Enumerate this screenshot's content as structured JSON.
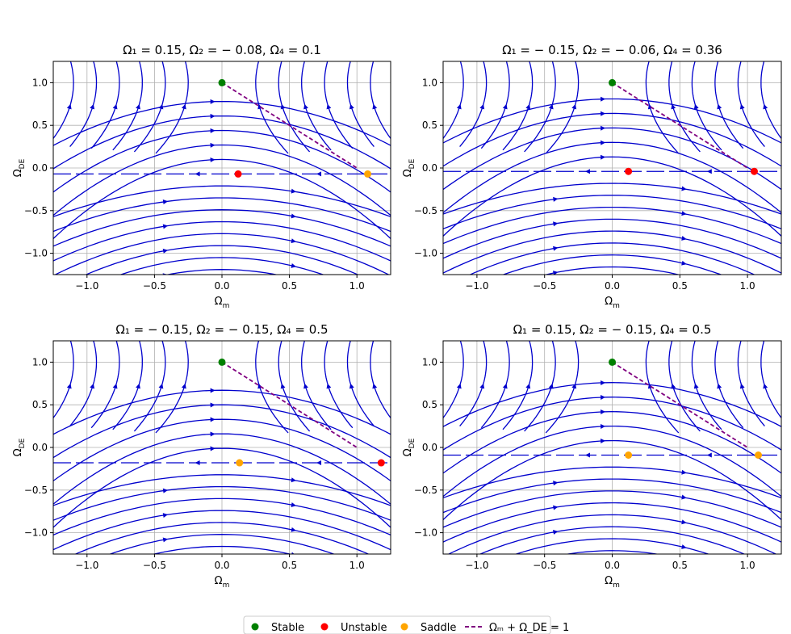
{
  "chart_data": [
    {
      "type": "streamplot",
      "title": "Ω₁ = 0.15, Ω₂ = − 0.08, Ω₄ = 0.1",
      "xlabel": "Ωₘ",
      "ylabel": "Ω_DE",
      "xlim": [
        -1.25,
        1.25
      ],
      "ylim": [
        -1.25,
        1.25
      ],
      "xticks": [
        "−1.0",
        "−0.5",
        "0.0",
        "0.5",
        "1.0"
      ],
      "yticks": [
        "1.0",
        "0.5",
        "0.0",
        "−0.5",
        "−1.0"
      ],
      "grid": true,
      "params": {
        "Omega1": 0.15,
        "Omega2": -0.08,
        "Omega4": 0.1
      },
      "fixed_points": [
        {
          "kind": "Stable",
          "x": 0.0,
          "y": 1.0
        },
        {
          "kind": "Unstable",
          "x": 0.12,
          "y": -0.07
        },
        {
          "kind": "Saddle",
          "x": 1.08,
          "y": -0.07
        }
      ],
      "constraint_line": [
        [
          0.0,
          1.0
        ],
        [
          1.0,
          0.0
        ]
      ]
    },
    {
      "type": "streamplot",
      "title": "Ω₁ = − 0.15, Ω₂ = − 0.06, Ω₄ = 0.36",
      "xlabel": "Ωₘ",
      "ylabel": "Ω_DE",
      "xlim": [
        -1.25,
        1.25
      ],
      "ylim": [
        -1.25,
        1.25
      ],
      "xticks": [
        "−1.0",
        "−0.5",
        "0.0",
        "0.5",
        "1.0"
      ],
      "yticks": [
        "1.0",
        "0.5",
        "0.0",
        "−0.5",
        "−1.0"
      ],
      "grid": true,
      "params": {
        "Omega1": -0.15,
        "Omega2": -0.06,
        "Omega4": 0.36
      },
      "fixed_points": [
        {
          "kind": "Stable",
          "x": 0.0,
          "y": 1.0
        },
        {
          "kind": "Unstable",
          "x": 0.12,
          "y": -0.04
        },
        {
          "kind": "Unstable",
          "x": 1.05,
          "y": -0.04
        }
      ],
      "constraint_line": [
        [
          0.0,
          1.0
        ],
        [
          1.0,
          0.0
        ]
      ]
    },
    {
      "type": "streamplot",
      "title": "Ω₁ = − 0.15, Ω₂ = − 0.15, Ω₄ = 0.5",
      "xlabel": "Ωₘ",
      "ylabel": "Ω_DE",
      "xlim": [
        -1.25,
        1.25
      ],
      "ylim": [
        -1.25,
        1.25
      ],
      "xticks": [
        "−1.0",
        "−0.5",
        "0.0",
        "0.5",
        "1.0"
      ],
      "yticks": [
        "1.0",
        "0.5",
        "0.0",
        "−0.5",
        "−1.0"
      ],
      "grid": true,
      "params": {
        "Omega1": -0.15,
        "Omega2": -0.15,
        "Omega4": 0.5
      },
      "fixed_points": [
        {
          "kind": "Stable",
          "x": 0.0,
          "y": 1.0
        },
        {
          "kind": "Saddle",
          "x": 0.13,
          "y": -0.18
        },
        {
          "kind": "Unstable",
          "x": 1.18,
          "y": -0.18
        }
      ],
      "constraint_line": [
        [
          0.0,
          1.0
        ],
        [
          1.0,
          0.0
        ]
      ]
    },
    {
      "type": "streamplot",
      "title": "Ω₁ = 0.15, Ω₂ = − 0.15, Ω₄ = 0.5",
      "xlabel": "Ωₘ",
      "ylabel": "Ω_DE",
      "xlim": [
        -1.25,
        1.25
      ],
      "ylim": [
        -1.25,
        1.25
      ],
      "xticks": [
        "−1.0",
        "−0.5",
        "0.0",
        "0.5",
        "1.0"
      ],
      "yticks": [
        "1.0",
        "0.5",
        "0.0",
        "−0.5",
        "−1.0"
      ],
      "grid": true,
      "params": {
        "Omega1": 0.15,
        "Omega2": -0.15,
        "Omega4": 0.5
      },
      "fixed_points": [
        {
          "kind": "Stable",
          "x": 0.0,
          "y": 1.0
        },
        {
          "kind": "Saddle",
          "x": 0.12,
          "y": -0.09
        },
        {
          "kind": "Saddle",
          "x": 1.08,
          "y": -0.09
        }
      ],
      "constraint_line": [
        [
          0.0,
          1.0
        ],
        [
          1.0,
          0.0
        ]
      ]
    }
  ],
  "legend": {
    "placement": "bottom-center",
    "entries": [
      {
        "label": "Stable",
        "marker": "dot",
        "color": "#008000"
      },
      {
        "label": "Unstable",
        "marker": "dot",
        "color": "#ff0000"
      },
      {
        "label": "Saddle",
        "marker": "dot",
        "color": "#ffa500"
      },
      {
        "label": "Ωₘ + Ω_DE = 1",
        "marker": "dashed-line",
        "color": "#800080"
      }
    ]
  },
  "colors": {
    "stream": "#0000cd",
    "stable": "#008000",
    "unstable": "#ff0000",
    "saddle": "#ffa500",
    "constraint": "#800080",
    "grid": "#b0b0b0"
  }
}
